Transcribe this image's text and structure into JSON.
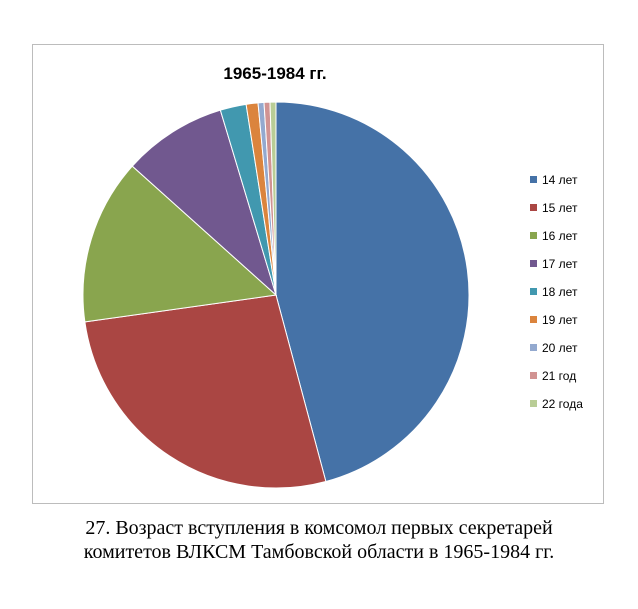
{
  "chart_data": {
    "type": "pie",
    "title": "1965-1984 гг.",
    "categories": [
      "14 лет",
      "15 лет",
      "16 лет",
      "17 лет",
      "18 лет",
      "19 лет",
      "20 лет",
      "21 год",
      "22 года"
    ],
    "values": [
      46.3,
      27.2,
      14.0,
      8.8,
      2.2,
      1.0,
      0.5,
      0.5,
      0.5
    ],
    "unit": "%",
    "colors": [
      "#4572A7",
      "#AA4643",
      "#89A54E",
      "#71588F",
      "#4198AF",
      "#DB843D",
      "#93A9CF",
      "#D19392",
      "#B9CD96"
    ],
    "start_angle_deg": 0,
    "direction": "clockwise",
    "legend_position": "right"
  },
  "caption": {
    "line1": "27. Возраст вступления в комсомол первых секретарей",
    "line2": "комитетов ВЛКСМ Тамбовской области в 1965-1984 гг."
  }
}
